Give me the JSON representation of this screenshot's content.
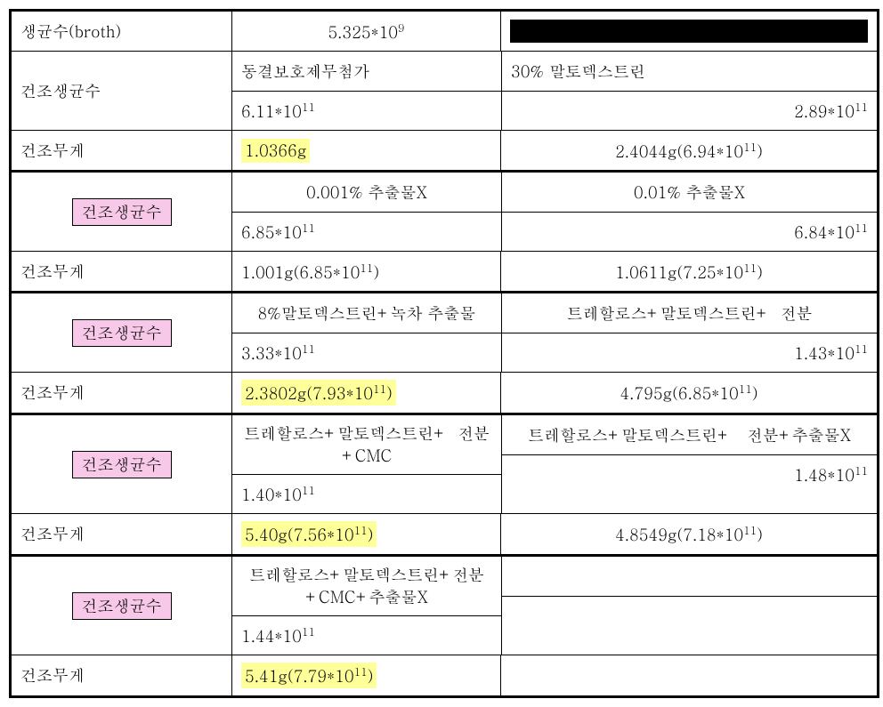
{
  "labels": {
    "broth": "생균수(broth)",
    "dried_count": "건조생균수",
    "dried_weight": "건조무게"
  },
  "section0": {
    "broth_value_html": "5.325*10<sup>9</sup>"
  },
  "section1": {
    "col2_header": "동결보호제무첨가",
    "col3_header": "30% 말토덱스트린",
    "col2_value_html": "6.11*10<sup>11</sup>",
    "col3_value_html": "2.89*10<sup>11</sup>",
    "col2_weight_html": "1.0366g",
    "col3_weight_html": "2.4044g(6.94*10<sup>11</sup>)"
  },
  "section2": {
    "col2_header": "0.001% 추출물X",
    "col3_header": "0.01% 추출물X",
    "col2_value_html": "6.85*10<sup>11</sup>",
    "col3_value_html": "6.84*10<sup>11</sup>",
    "col2_weight_html": "1.001g(6.85*10<sup>11</sup>)",
    "col3_weight_html": "1.0611g(7.25*10<sup>11</sup>)"
  },
  "section3": {
    "col2_header": "8%말토덱스트린+녹차 추출물",
    "col3_header": "트레할로스+말토덱스트린+&nbsp;&nbsp;전분",
    "col2_value_html": "3.33*10<sup>11</sup>",
    "col3_value_html": "1.43*10<sup>11</sup>",
    "col2_weight_html": "2.3802g(7.93*10<sup>11</sup>)",
    "col3_weight_html": "4.795g(6.85*10<sup>11</sup>)"
  },
  "section4": {
    "col2_header": "트레할로스+말토덱스트린+&nbsp;&nbsp;전분+CMC",
    "col3_header": "트레할로스+말토덱스트린+&nbsp;&nbsp;&nbsp;전분+추출물X",
    "col2_value_html": "1.40*10<sup>11</sup>",
    "col3_value_html": "1.48*10<sup>11</sup>",
    "col2_weight_html": "5.40g(7.56*10<sup>11</sup>)",
    "col3_weight_html": "4.8549g(7.18*10<sup>11</sup>)"
  },
  "section5": {
    "col2_header": "트레할로스+말토덱스트린+전분+CMC+추출물X",
    "col3_header": "",
    "col2_value_html": "1.44*10<sup>11</sup>",
    "col3_value_html": "",
    "col2_weight_html": "5.41g(7.79*10<sup>11</sup>)",
    "col3_weight_html": ""
  },
  "colors": {
    "pink": "#f8c8e8",
    "yellow": "#ffff99",
    "black": "#000000",
    "border": "#000000",
    "background": "#ffffff"
  }
}
